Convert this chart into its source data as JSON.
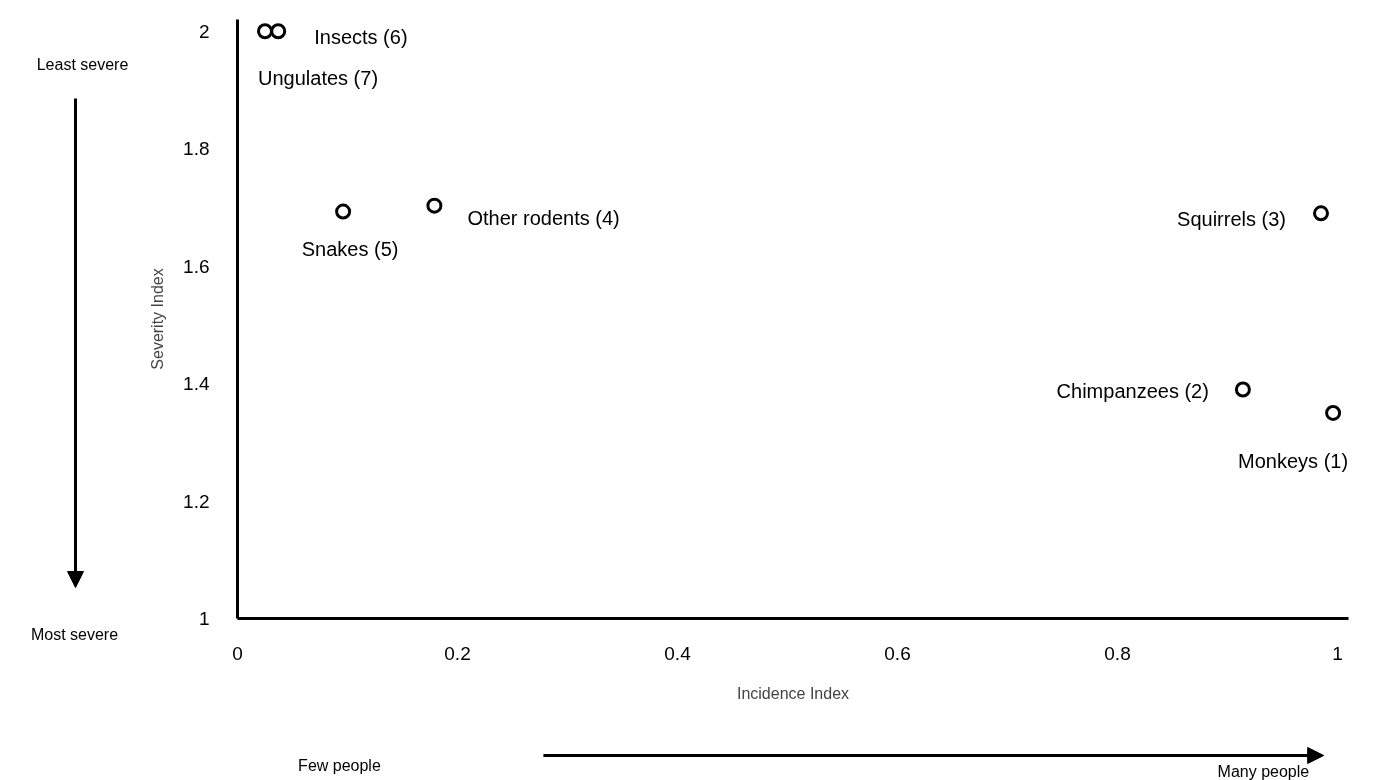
{
  "chart_data": {
    "type": "scatter",
    "xlabel": "Incidence Index",
    "ylabel": "Severity Index",
    "x": [
      0.037,
      0.025,
      0.096,
      0.179,
      0.985,
      0.914,
      0.996
    ],
    "values": [
      2.0,
      2.0,
      1.693,
      1.703,
      1.69,
      1.39,
      1.35
    ],
    "color": "#000000",
    "marker": "circle",
    "grid": false,
    "xlim": [
      0,
      1.01
    ],
    "xticks": [
      0,
      0.2,
      0.4,
      0.6,
      0.8,
      1
    ],
    "ylim": [
      1,
      2.02
    ],
    "yticks": [
      1,
      1.2,
      1.4,
      1.6,
      1.8,
      2
    ],
    "annotations": [
      {
        "text": "Insects (6)",
        "x": 0.037,
        "y": 2.0
      },
      {
        "text": "Ungulates (7)",
        "x": 0.025,
        "y": 2.0
      },
      {
        "text": "Snakes (5)",
        "x": 0.096,
        "y": 1.693
      },
      {
        "text": "Other rodents (4)",
        "x": 0.179,
        "y": 1.703
      },
      {
        "text": "Squirrels (3)",
        "x": 0.985,
        "y": 1.69
      },
      {
        "text": "Chimpanzees (2)",
        "x": 0.914,
        "y": 1.39
      },
      {
        "text": "Monkeys (1)",
        "x": 0.996,
        "y": 1.35
      },
      "Least severe",
      "Most severe",
      "Few people",
      "Many people"
    ]
  }
}
